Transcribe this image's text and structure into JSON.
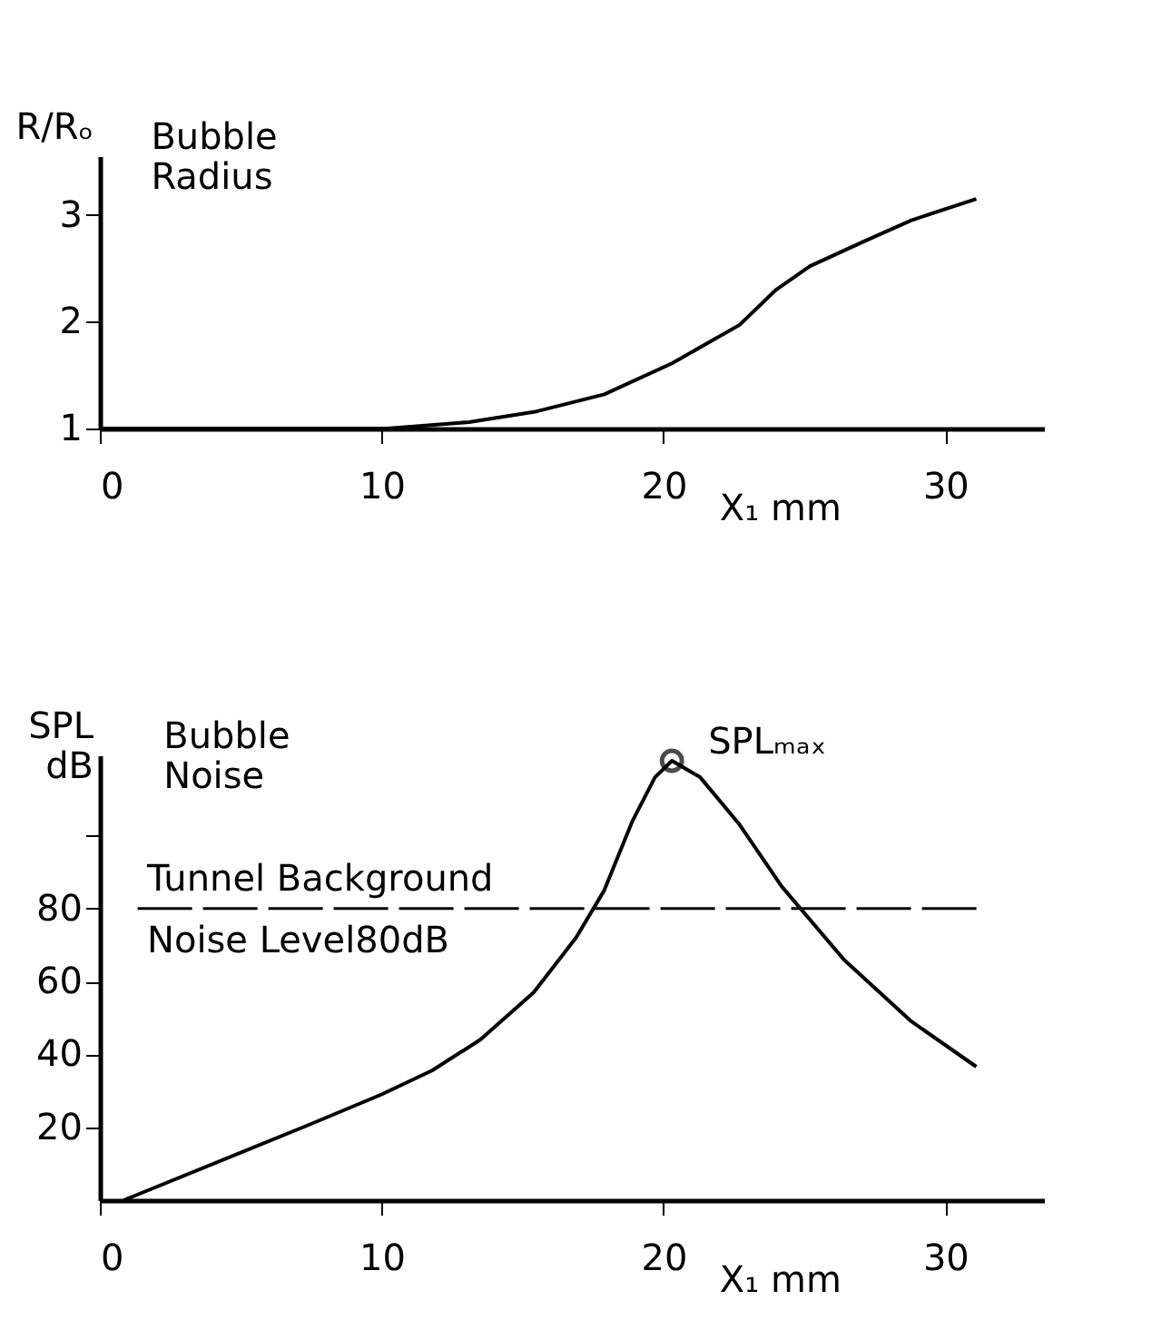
{
  "chart_data": [
    {
      "type": "line",
      "title": "Bubble Radius",
      "ylabel": "R/Rₒ",
      "xlabel": "X₁ mm",
      "xlim": [
        0,
        33.5
      ],
      "xticks": [
        0,
        10,
        20,
        30
      ],
      "ylim": [
        1,
        3.55
      ],
      "yticks": [
        1,
        2,
        3
      ],
      "grid": false,
      "series": [
        {
          "color": "#000000",
          "x": [
            0,
            10.2,
            13.1,
            15.5,
            17.9,
            20.3,
            22.7,
            24,
            25.2,
            27.1,
            28.8,
            31.1
          ],
          "values": [
            1,
            1.0,
            1.06,
            1.16,
            1.32,
            1.61,
            1.97,
            2.3,
            2.52,
            2.75,
            2.95,
            3.15
          ]
        }
      ]
    },
    {
      "type": "line",
      "title": "Bubble Noise",
      "ylabel": "SPL dB",
      "xlabel": "X₁ mm",
      "xlim": [
        0,
        33.5
      ],
      "xticks": [
        0,
        10,
        20,
        30
      ],
      "ylim": [
        0,
        122
      ],
      "yticks": [
        20,
        40,
        60,
        80,
        {
          "value": 100,
          "label": null
        }
      ],
      "grid": false,
      "series": [
        {
          "color": "#000000",
          "x": [
            0.85,
            7.4,
            10,
            11.8,
            13.5,
            15.4,
            16.9,
            17.9,
            18.9,
            19.7,
            20.3,
            21.3,
            22.7,
            24.2,
            26.4,
            28.8,
            31.1
          ],
          "values": [
            0,
            20.6,
            29,
            35.6,
            44,
            57,
            72,
            85,
            104,
            116,
            120.5,
            116,
            103,
            86,
            66,
            49,
            36.6
          ]
        },
        {
          "type": "scatter",
          "marker": "circle",
          "color": "#000000",
          "x": [
            20.3
          ],
          "values": [
            120.5
          ]
        }
      ],
      "ref_lines": [
        {
          "axis": "y",
          "value": 80,
          "label": "Tunnel Background\nNoise Level80dB",
          "line_style": "dashed",
          "color": "#000000"
        }
      ],
      "annotations": [
        {
          "text": "SPLₘₐₓ",
          "x": 20.3,
          "y": 120.5
        }
      ]
    }
  ]
}
